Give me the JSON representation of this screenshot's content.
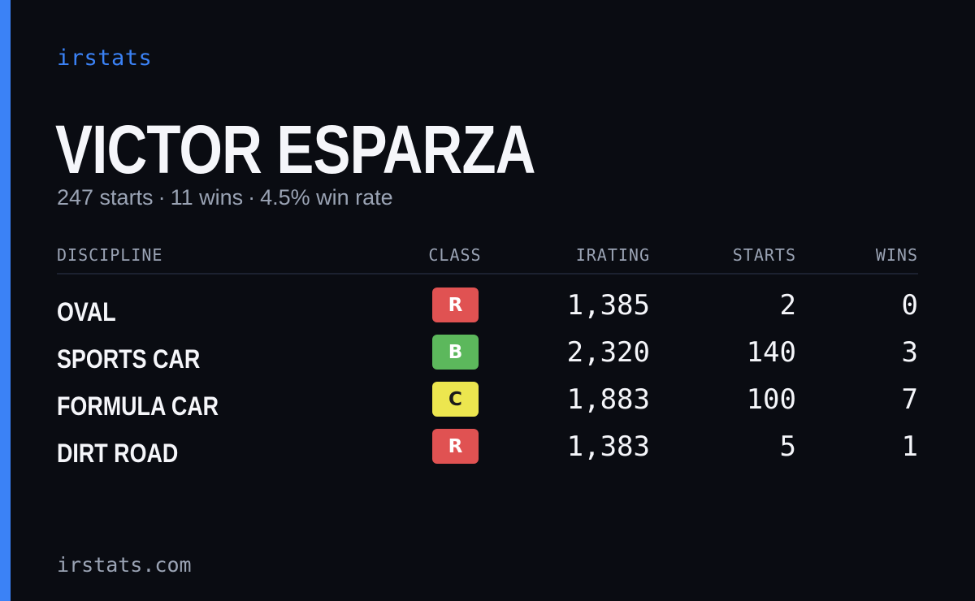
{
  "brand": "irstats",
  "driver": {
    "name": "VICTOR ESPARZA",
    "summary": {
      "starts": "247 starts",
      "wins": "11 wins",
      "win_rate": "4.5% win rate",
      "separator": "·"
    }
  },
  "table": {
    "headers": {
      "discipline": "DISCIPLINE",
      "class": "CLASS",
      "irating": "IRATING",
      "starts": "STARTS",
      "wins": "WINS"
    },
    "rows": [
      {
        "discipline": "OVAL",
        "class": "R",
        "irating": "1,385",
        "starts": "2",
        "wins": "0"
      },
      {
        "discipline": "SPORTS CAR",
        "class": "B",
        "irating": "2,320",
        "starts": "140",
        "wins": "3"
      },
      {
        "discipline": "FORMULA CAR",
        "class": "C",
        "irating": "1,883",
        "starts": "100",
        "wins": "7"
      },
      {
        "discipline": "DIRT ROAD",
        "class": "R",
        "irating": "1,383",
        "starts": "5",
        "wins": "1"
      }
    ]
  },
  "footer": "irstats.com",
  "colors": {
    "background": "#0a0c12",
    "accent": "#3b82f6",
    "class_R": "#e05252",
    "class_B": "#5cb85c",
    "class_C": "#ece64f"
  }
}
